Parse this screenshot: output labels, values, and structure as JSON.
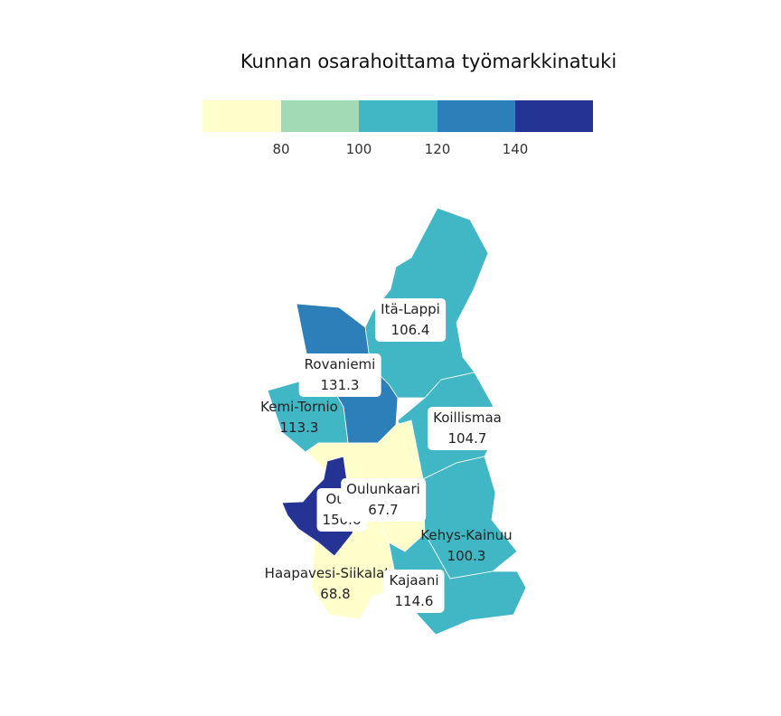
{
  "title": "Kunnan osarahoittama työmarkkinatuki",
  "legend": {
    "ticks": [
      "80",
      "100",
      "120",
      "140"
    ],
    "colors": [
      "#ffffcc",
      "#a1dab4",
      "#41b6c4",
      "#2c7fb8",
      "#253494"
    ]
  },
  "regions": [
    {
      "name": "Itä-Lappi",
      "value": "106.4",
      "color": "#41b6c4"
    },
    {
      "name": "Rovaniemi",
      "value": "131.3",
      "color": "#2c7fb8"
    },
    {
      "name": "Kemi-Tornio",
      "value": "113.3",
      "color": "#41b6c4"
    },
    {
      "name": "Koillismaa",
      "value": "104.7",
      "color": "#41b6c4"
    },
    {
      "name": "Oulunkaari",
      "value": "67.7",
      "color": "#ffffcc"
    },
    {
      "name": "Oulu",
      "value": "150.6",
      "color": "#253494"
    },
    {
      "name": "Kehys-Kainuu",
      "value": "100.3",
      "color": "#41b6c4"
    },
    {
      "name": "Haapavesi-Siikalatva",
      "value": "68.8",
      "color": "#ffffcc"
    },
    {
      "name": "Kajaani",
      "value": "114.6",
      "color": "#41b6c4"
    }
  ]
}
